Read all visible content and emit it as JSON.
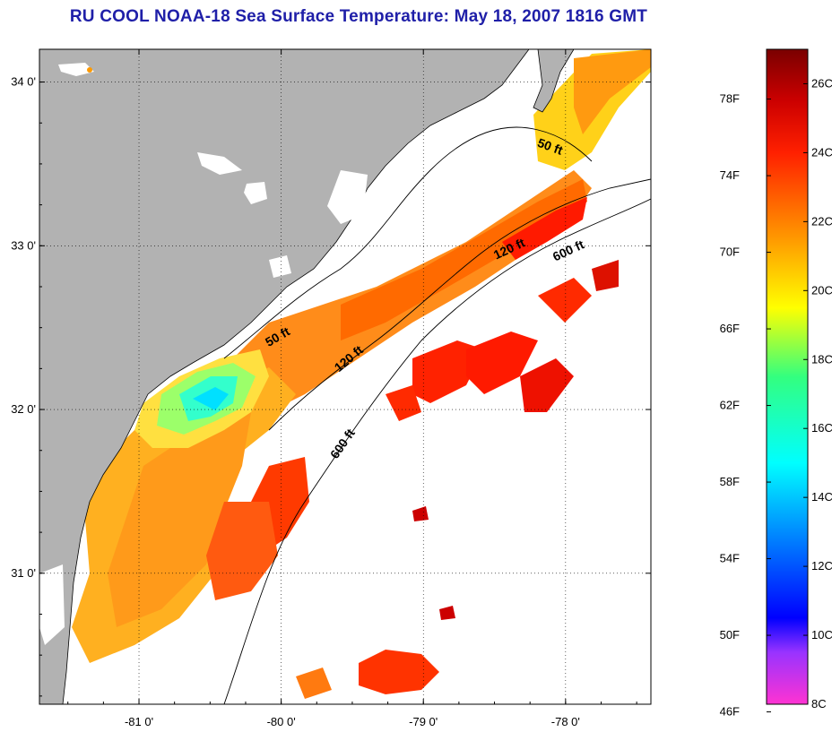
{
  "title": "RU COOL  NOAA-18  Sea Surface Temperature:  May 18, 2007 1816 GMT",
  "map": {
    "lon_ticks": [
      {
        "value": -81,
        "label": "-81 0'"
      },
      {
        "value": -80,
        "label": "-80 0'"
      },
      {
        "value": -79,
        "label": "-79 0'"
      },
      {
        "value": -78,
        "label": "-78 0'"
      }
    ],
    "lat_ticks": [
      {
        "value": 34,
        "label": "34 0'"
      },
      {
        "value": 33,
        "label": "33 0'"
      },
      {
        "value": 32,
        "label": "32 0'"
      },
      {
        "value": 31,
        "label": "31 0'"
      }
    ],
    "lon_range": [
      -81.7,
      -77.4
    ],
    "lat_range": [
      30.2,
      34.2
    ],
    "contour_labels": [
      {
        "text": "50 ft",
        "lon": -78.1,
        "lat": 33.6
      },
      {
        "text": "120 ft",
        "lon": -77.8,
        "lat": 33.0
      },
      {
        "text": "600 ft",
        "lon": -77.6,
        "lat": 32.9
      },
      {
        "text": "50 ft",
        "lon": -79.9,
        "lat": 32.4
      },
      {
        "text": "120 ft",
        "lon": -79.4,
        "lat": 32.2
      },
      {
        "text": "600 ft",
        "lon": -79.5,
        "lat": 31.7
      }
    ],
    "colors": {
      "land": "#b2b2b2",
      "ocean": "#ffffff",
      "contour": "#000000"
    }
  },
  "colorbar": {
    "fahrenheit_labels": [
      "78F",
      "74F",
      "70F",
      "66F",
      "62F",
      "58F",
      "54F",
      "50F",
      "46F"
    ],
    "celsius_labels": [
      "26C",
      "24C",
      "22C",
      "20C",
      "18C",
      "16C",
      "14C",
      "12C",
      "10C",
      "8C"
    ],
    "range_c": [
      8,
      27
    ],
    "stops": [
      {
        "c": 8,
        "color": "#ff33d2"
      },
      {
        "c": 9.5,
        "color": "#9933ff"
      },
      {
        "c": 10.5,
        "color": "#0000ff"
      },
      {
        "c": 13,
        "color": "#008cff"
      },
      {
        "c": 15,
        "color": "#00ffff"
      },
      {
        "c": 17.5,
        "color": "#33ff7f"
      },
      {
        "c": 19.5,
        "color": "#ffff00"
      },
      {
        "c": 21.5,
        "color": "#ff9900"
      },
      {
        "c": 24,
        "color": "#ff2000"
      },
      {
        "c": 25.5,
        "color": "#cc0000"
      },
      {
        "c": 27,
        "color": "#7a0000"
      }
    ]
  }
}
